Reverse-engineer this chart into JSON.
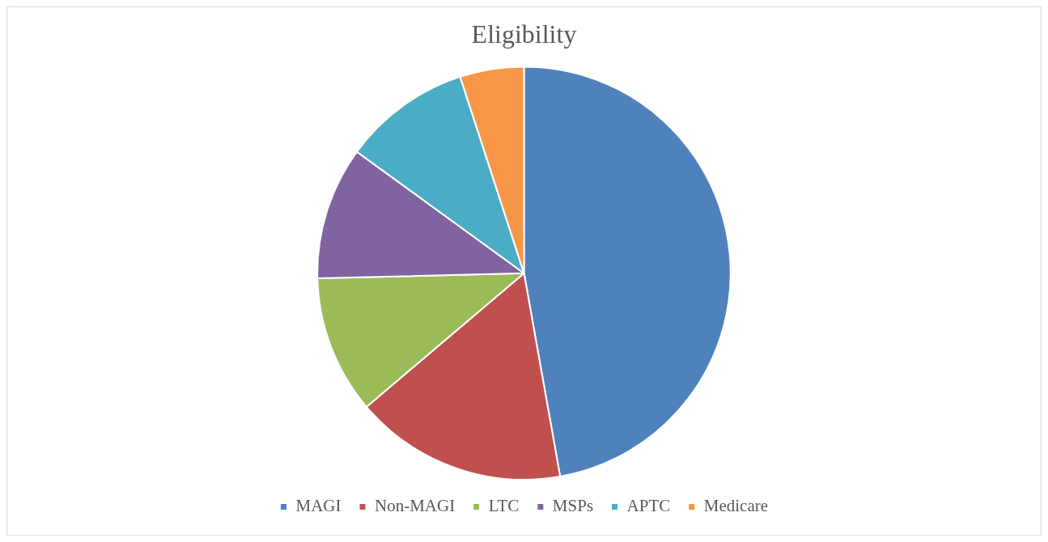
{
  "chart_data": {
    "type": "pie",
    "title": "Eligibility",
    "categories": [
      "MAGI",
      "Non-MAGI",
      "LTC",
      "MSPs",
      "APTC",
      "Medicare"
    ],
    "values": [
      47.2,
      16.6,
      10.8,
      10.4,
      10,
      5
    ],
    "colors": [
      "#4f81bd",
      "#c0504d",
      "#9bbb59",
      "#8064a2",
      "#4bacc6",
      "#f79646"
    ],
    "legend": "bottom"
  }
}
